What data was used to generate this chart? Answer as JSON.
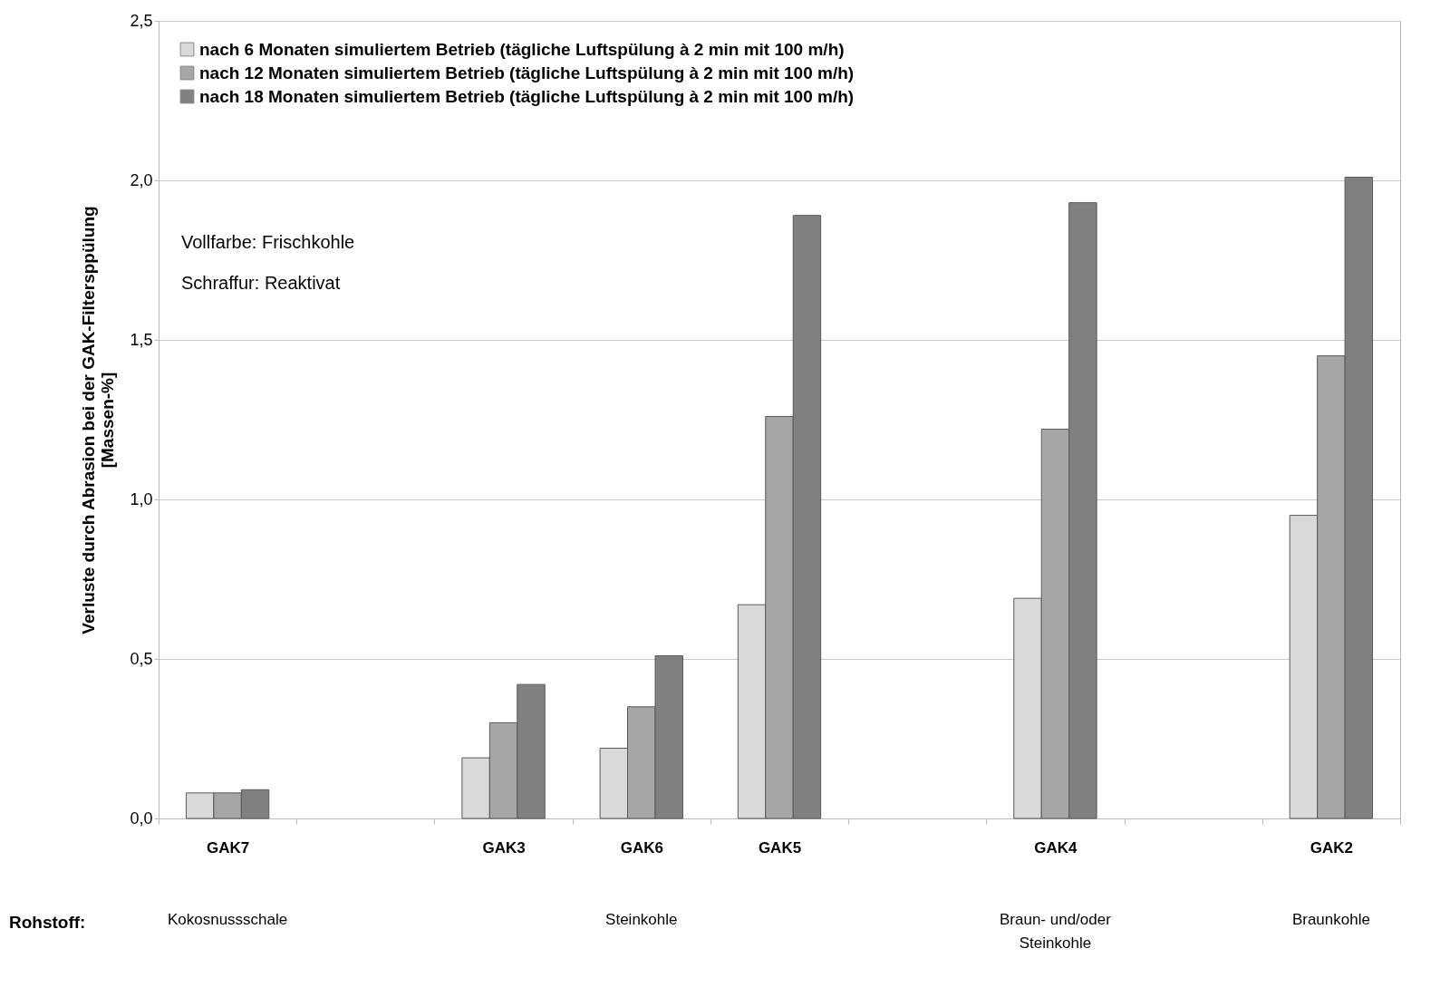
{
  "chart_data": {
    "type": "bar",
    "ylabel": "Verluste durch Abrasion bei der GAK-Filtersppülung\n[Massen-%]",
    "categories": [
      "GAK7",
      null,
      "GAK3",
      "GAK6",
      "GAK5",
      null,
      "GAK4",
      null,
      "GAK2"
    ],
    "series": [
      {
        "name": "nach 6 Monaten simuliertem Betrieb (tägliche Luftspülung à 2 min mit 100 m/h)",
        "color": "#d9d9d9",
        "values": [
          0.08,
          null,
          0.19,
          0.22,
          0.67,
          null,
          0.69,
          null,
          0.95
        ]
      },
      {
        "name": "nach 12 Monaten simuliertem Betrieb (tägliche Luftspülung à 2 min mit 100 m/h)",
        "color": "#a6a6a6",
        "values": [
          0.08,
          null,
          0.3,
          0.35,
          1.26,
          null,
          1.22,
          null,
          1.45
        ]
      },
      {
        "name": "nach 18 Monaten simuliertem Betrieb (tägliche Luftspülung à 2 min mit 100 m/h)",
        "color": "#808080",
        "values": [
          0.09,
          null,
          0.42,
          0.51,
          1.89,
          null,
          1.93,
          null,
          2.01
        ]
      }
    ],
    "ylim": [
      0,
      2.5
    ],
    "yticks": [
      {
        "value": 0,
        "label": "0,0"
      },
      {
        "value": 0.5,
        "label": "0,5"
      },
      {
        "value": 1,
        "label": "1,0"
      },
      {
        "value": 1.5,
        "label": "1,5"
      },
      {
        "value": 2,
        "label": "2,0"
      },
      {
        "value": 2.5,
        "label": "2,5"
      }
    ],
    "grid": "y",
    "legend": "top left",
    "annotations": [
      "Vollfarbe: Frischkohle",
      "Schraffur: Reaktivat",
      "Rohstoff:",
      "Kokosnussschale",
      "Steinkohle",
      "Braun- und/oder\nSteinkohle",
      "Braunkohle"
    ]
  }
}
